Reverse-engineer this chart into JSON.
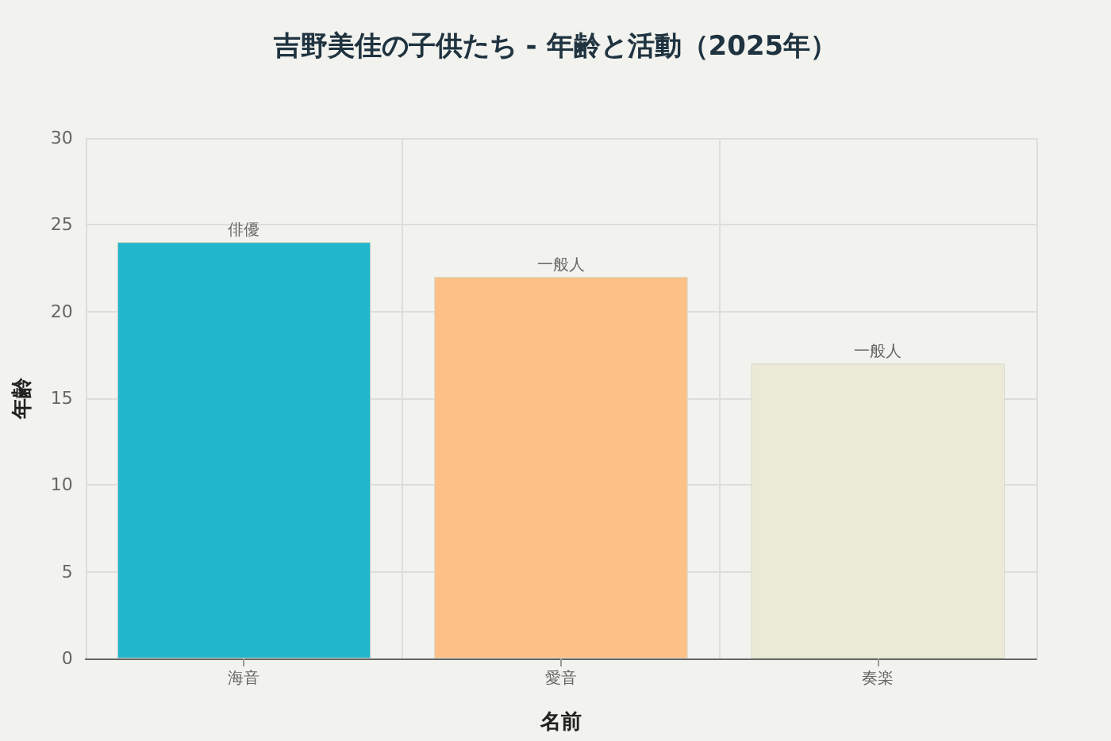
{
  "chart_data": {
    "type": "bar",
    "title": "吉野美佳の子供たち - 年齢と活動（2025年）",
    "xlabel": "名前",
    "ylabel": "年齢",
    "categories": [
      "海音",
      "愛音",
      "奏楽"
    ],
    "values": [
      24,
      22,
      17
    ],
    "colors": [
      "#21b6cb",
      "#fdc086",
      "#eaead6"
    ],
    "ylim": [
      0,
      30
    ],
    "yticks": [
      0,
      5,
      10,
      15,
      20,
      25,
      30
    ],
    "grid": true,
    "annotations": [
      {
        "text": "俳優",
        "x": "海音",
        "y": 24
      },
      {
        "text": "一般人",
        "x": "愛音",
        "y": 22
      },
      {
        "text": "一般人",
        "x": "奏楽",
        "y": 17
      }
    ]
  }
}
